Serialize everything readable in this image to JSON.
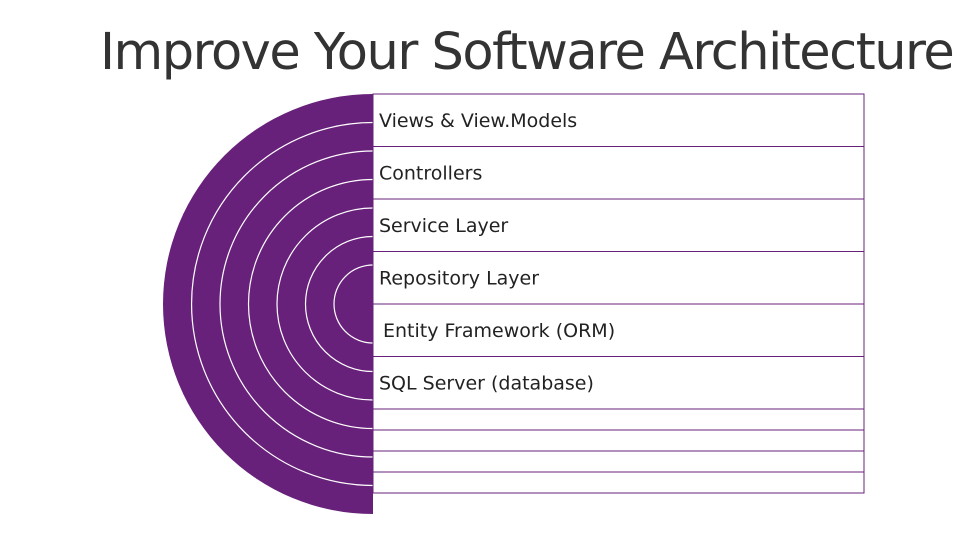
{
  "slide": {
    "title": "Improve Your Software Architecture"
  },
  "diagram": {
    "accent_color": "#68217a",
    "ring_line_color": "#ffffff",
    "row_border_color": "#68217a",
    "layers": [
      {
        "label": "Views & View.Models"
      },
      {
        "label": "Controllers"
      },
      {
        "label": "Service Layer"
      },
      {
        "label": "Repository Layer"
      },
      {
        "label": "Entity Framework (ORM)"
      },
      {
        "label": "SQL Server (database)"
      }
    ],
    "empty_rows": 4
  }
}
